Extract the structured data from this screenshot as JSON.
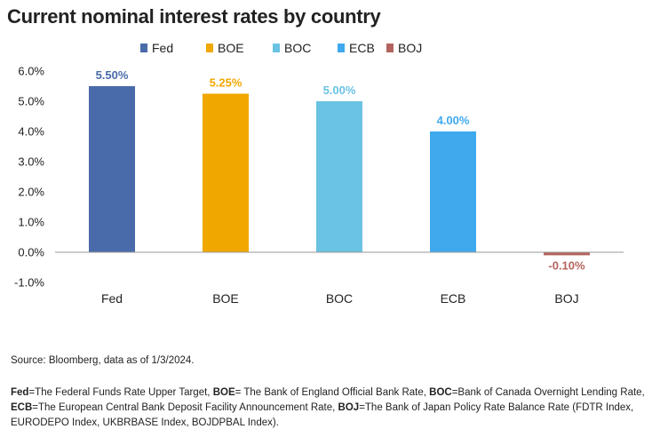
{
  "chart_data": {
    "type": "bar",
    "title": "Current nominal interest rates by country",
    "categories": [
      "Fed",
      "BOE",
      "BOC",
      "ECB",
      "BOJ"
    ],
    "values": [
      5.5,
      5.25,
      5.0,
      4.0,
      -0.1
    ],
    "data_labels": [
      "5.50%",
      "5.25%",
      "5.00%",
      "4.00%",
      "-0.10%"
    ],
    "colors": [
      "#4a6baa",
      "#f0a800",
      "#6ac3e2",
      "#3fa9ee",
      "#b5635e"
    ],
    "legend": [
      "Fed",
      "BOE",
      "BOC",
      "ECB",
      "BOJ"
    ],
    "legend_position": "top",
    "ylim": [
      -1.0,
      6.0
    ],
    "yticks": [
      -1.0,
      0.0,
      1.0,
      2.0,
      3.0,
      4.0,
      5.0,
      6.0
    ],
    "ytick_labels": [
      "-1.0%",
      "0.0%",
      "1.0%",
      "2.0%",
      "3.0%",
      "4.0%",
      "5.0%",
      "6.0%"
    ],
    "grid": false,
    "xlabel": "",
    "ylabel": ""
  },
  "footer": {
    "source": "Source: Bloomberg, data as of 1/3/2024.",
    "notes": [
      {
        "abbr": "Fed",
        "text": "=The Federal Funds Rate Upper Target, "
      },
      {
        "abbr": "BOE",
        "text": "= The Bank of England Official Bank Rate, "
      },
      {
        "abbr": "BOC",
        "text": "=Bank of Canada Overnight Lending Rate, "
      },
      {
        "abbr": "ECB",
        "text": "=The European Central Bank Deposit Facility Announcement Rate, "
      },
      {
        "abbr": "BOJ",
        "text": "=The Bank of Japan Policy Rate Balance Rate (FDTR Index, EURODEPO Index, UKBRBASE Index, BOJDPBAL Index)."
      }
    ]
  }
}
